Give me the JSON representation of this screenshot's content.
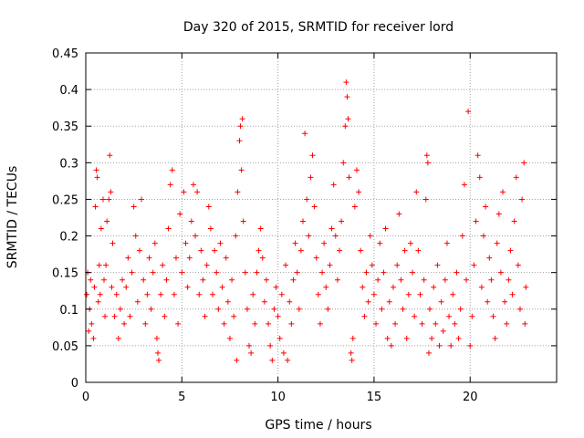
{
  "chart_data": {
    "type": "scatter",
    "title": "Day 320 of 2015, SRMTID for receiver lord",
    "xlabel": "GPS time / hours",
    "ylabel": "SRMTID / TECUs",
    "xlim": [
      0,
      24.5
    ],
    "ylim": [
      0,
      0.45
    ],
    "xticks": [
      0,
      5,
      10,
      15,
      20
    ],
    "xtick_labels": [
      "0",
      "5",
      "10",
      "15",
      "20"
    ],
    "yticks": [
      0,
      0.05,
      0.1,
      0.15,
      0.2,
      0.25,
      0.3,
      0.35,
      0.4,
      0.45
    ],
    "ytick_labels": [
      "0",
      "0.05",
      "0.1",
      "0.15",
      "0.2",
      "0.25",
      "0.3",
      "0.35",
      "0.4",
      "0.45"
    ],
    "grid": true,
    "marker": "+",
    "color": "#ff0000",
    "series": [
      {
        "name": "SRMTID",
        "points": [
          [
            0.05,
            0.12
          ],
          [
            0.1,
            0.15
          ],
          [
            0.15,
            0.07
          ],
          [
            0.2,
            0.1
          ],
          [
            0.25,
            0.14
          ],
          [
            0.3,
            0.08
          ],
          [
            0.4,
            0.06
          ],
          [
            0.45,
            0.13
          ],
          [
            0.5,
            0.24
          ],
          [
            0.55,
            0.29
          ],
          [
            0.6,
            0.28
          ],
          [
            0.65,
            0.11
          ],
          [
            0.7,
            0.16
          ],
          [
            0.75,
            0.12
          ],
          [
            0.8,
            0.21
          ],
          [
            0.9,
            0.25
          ],
          [
            0.95,
            0.14
          ],
          [
            1.0,
            0.09
          ],
          [
            1.05,
            0.16
          ],
          [
            1.1,
            0.22
          ],
          [
            1.2,
            0.25
          ],
          [
            1.25,
            0.31
          ],
          [
            1.3,
            0.26
          ],
          [
            1.35,
            0.13
          ],
          [
            1.4,
            0.19
          ],
          [
            1.5,
            0.09
          ],
          [
            1.6,
            0.12
          ],
          [
            1.7,
            0.06
          ],
          [
            1.8,
            0.1
          ],
          [
            1.9,
            0.14
          ],
          [
            2.0,
            0.08
          ],
          [
            2.1,
            0.13
          ],
          [
            2.2,
            0.17
          ],
          [
            2.3,
            0.09
          ],
          [
            2.4,
            0.15
          ],
          [
            2.5,
            0.24
          ],
          [
            2.6,
            0.2
          ],
          [
            2.7,
            0.11
          ],
          [
            2.8,
            0.18
          ],
          [
            2.9,
            0.25
          ],
          [
            3.0,
            0.14
          ],
          [
            3.1,
            0.08
          ],
          [
            3.2,
            0.12
          ],
          [
            3.3,
            0.17
          ],
          [
            3.4,
            0.1
          ],
          [
            3.5,
            0.15
          ],
          [
            3.6,
            0.19
          ],
          [
            3.7,
            0.06
          ],
          [
            3.75,
            0.04
          ],
          [
            3.8,
            0.03
          ],
          [
            3.9,
            0.12
          ],
          [
            4.0,
            0.16
          ],
          [
            4.1,
            0.09
          ],
          [
            4.2,
            0.14
          ],
          [
            4.3,
            0.21
          ],
          [
            4.4,
            0.27
          ],
          [
            4.5,
            0.29
          ],
          [
            4.6,
            0.12
          ],
          [
            4.7,
            0.17
          ],
          [
            4.8,
            0.08
          ],
          [
            4.9,
            0.23
          ],
          [
            5.0,
            0.15
          ],
          [
            5.1,
            0.26
          ],
          [
            5.2,
            0.19
          ],
          [
            5.3,
            0.13
          ],
          [
            5.4,
            0.17
          ],
          [
            5.5,
            0.22
          ],
          [
            5.6,
            0.27
          ],
          [
            5.7,
            0.2
          ],
          [
            5.8,
            0.26
          ],
          [
            5.9,
            0.12
          ],
          [
            6.0,
            0.18
          ],
          [
            6.1,
            0.14
          ],
          [
            6.2,
            0.09
          ],
          [
            6.3,
            0.16
          ],
          [
            6.4,
            0.24
          ],
          [
            6.5,
            0.21
          ],
          [
            6.6,
            0.12
          ],
          [
            6.7,
            0.18
          ],
          [
            6.8,
            0.15
          ],
          [
            6.9,
            0.1
          ],
          [
            7.0,
            0.19
          ],
          [
            7.1,
            0.13
          ],
          [
            7.2,
            0.08
          ],
          [
            7.3,
            0.17
          ],
          [
            7.4,
            0.11
          ],
          [
            7.5,
            0.06
          ],
          [
            7.6,
            0.14
          ],
          [
            7.7,
            0.09
          ],
          [
            7.8,
            0.2
          ],
          [
            7.85,
            0.03
          ],
          [
            7.9,
            0.26
          ],
          [
            8.0,
            0.33
          ],
          [
            8.05,
            0.35
          ],
          [
            8.1,
            0.29
          ],
          [
            8.15,
            0.36
          ],
          [
            8.2,
            0.22
          ],
          [
            8.3,
            0.15
          ],
          [
            8.4,
            0.1
          ],
          [
            8.5,
            0.05
          ],
          [
            8.6,
            0.04
          ],
          [
            8.7,
            0.12
          ],
          [
            8.8,
            0.08
          ],
          [
            8.9,
            0.15
          ],
          [
            9.0,
            0.18
          ],
          [
            9.1,
            0.21
          ],
          [
            9.2,
            0.17
          ],
          [
            9.3,
            0.11
          ],
          [
            9.4,
            0.14
          ],
          [
            9.5,
            0.08
          ],
          [
            9.6,
            0.05
          ],
          [
            9.7,
            0.03
          ],
          [
            9.8,
            0.1
          ],
          [
            9.9,
            0.13
          ],
          [
            10.0,
            0.09
          ],
          [
            10.1,
            0.06
          ],
          [
            10.2,
            0.12
          ],
          [
            10.3,
            0.04
          ],
          [
            10.4,
            0.16
          ],
          [
            10.5,
            0.03
          ],
          [
            10.6,
            0.11
          ],
          [
            10.7,
            0.08
          ],
          [
            10.8,
            0.14
          ],
          [
            10.9,
            0.19
          ],
          [
            11.0,
            0.15
          ],
          [
            11.1,
            0.1
          ],
          [
            11.2,
            0.18
          ],
          [
            11.3,
            0.22
          ],
          [
            11.4,
            0.34
          ],
          [
            11.5,
            0.25
          ],
          [
            11.6,
            0.2
          ],
          [
            11.7,
            0.28
          ],
          [
            11.8,
            0.31
          ],
          [
            11.9,
            0.24
          ],
          [
            12.0,
            0.17
          ],
          [
            12.1,
            0.12
          ],
          [
            12.2,
            0.08
          ],
          [
            12.3,
            0.15
          ],
          [
            12.4,
            0.19
          ],
          [
            12.5,
            0.13
          ],
          [
            12.6,
            0.1
          ],
          [
            12.7,
            0.16
          ],
          [
            12.8,
            0.21
          ],
          [
            12.9,
            0.27
          ],
          [
            13.0,
            0.2
          ],
          [
            13.1,
            0.14
          ],
          [
            13.2,
            0.18
          ],
          [
            13.3,
            0.22
          ],
          [
            13.4,
            0.3
          ],
          [
            13.5,
            0.35
          ],
          [
            13.55,
            0.41
          ],
          [
            13.6,
            0.39
          ],
          [
            13.65,
            0.36
          ],
          [
            13.7,
            0.28
          ],
          [
            13.8,
            0.04
          ],
          [
            13.85,
            0.03
          ],
          [
            13.9,
            0.06
          ],
          [
            14.0,
            0.24
          ],
          [
            14.1,
            0.29
          ],
          [
            14.2,
            0.26
          ],
          [
            14.3,
            0.18
          ],
          [
            14.4,
            0.13
          ],
          [
            14.5,
            0.09
          ],
          [
            14.6,
            0.15
          ],
          [
            14.7,
            0.11
          ],
          [
            14.8,
            0.2
          ],
          [
            14.9,
            0.16
          ],
          [
            15.0,
            0.12
          ],
          [
            15.1,
            0.08
          ],
          [
            15.2,
            0.14
          ],
          [
            15.3,
            0.19
          ],
          [
            15.4,
            0.1
          ],
          [
            15.5,
            0.15
          ],
          [
            15.6,
            0.21
          ],
          [
            15.7,
            0.06
          ],
          [
            15.8,
            0.11
          ],
          [
            15.9,
            0.05
          ],
          [
            16.0,
            0.13
          ],
          [
            16.1,
            0.08
          ],
          [
            16.2,
            0.16
          ],
          [
            16.3,
            0.23
          ],
          [
            16.4,
            0.14
          ],
          [
            16.5,
            0.1
          ],
          [
            16.6,
            0.18
          ],
          [
            16.7,
            0.06
          ],
          [
            16.8,
            0.12
          ],
          [
            16.9,
            0.19
          ],
          [
            17.0,
            0.15
          ],
          [
            17.1,
            0.09
          ],
          [
            17.2,
            0.26
          ],
          [
            17.3,
            0.18
          ],
          [
            17.4,
            0.12
          ],
          [
            17.5,
            0.08
          ],
          [
            17.6,
            0.14
          ],
          [
            17.7,
            0.25
          ],
          [
            17.75,
            0.31
          ],
          [
            17.8,
            0.3
          ],
          [
            17.85,
            0.04
          ],
          [
            17.9,
            0.1
          ],
          [
            18.0,
            0.06
          ],
          [
            18.1,
            0.13
          ],
          [
            18.2,
            0.08
          ],
          [
            18.3,
            0.16
          ],
          [
            18.4,
            0.05
          ],
          [
            18.5,
            0.11
          ],
          [
            18.6,
            0.07
          ],
          [
            18.7,
            0.14
          ],
          [
            18.8,
            0.19
          ],
          [
            18.9,
            0.09
          ],
          [
            19.0,
            0.05
          ],
          [
            19.1,
            0.12
          ],
          [
            19.2,
            0.08
          ],
          [
            19.3,
            0.15
          ],
          [
            19.4,
            0.06
          ],
          [
            19.5,
            0.1
          ],
          [
            19.6,
            0.2
          ],
          [
            19.7,
            0.27
          ],
          [
            19.8,
            0.14
          ],
          [
            19.9,
            0.37
          ],
          [
            20.0,
            0.05
          ],
          [
            20.1,
            0.09
          ],
          [
            20.2,
            0.16
          ],
          [
            20.3,
            0.22
          ],
          [
            20.4,
            0.31
          ],
          [
            20.5,
            0.28
          ],
          [
            20.6,
            0.13
          ],
          [
            20.7,
            0.2
          ],
          [
            20.8,
            0.24
          ],
          [
            20.9,
            0.11
          ],
          [
            21.0,
            0.17
          ],
          [
            21.1,
            0.14
          ],
          [
            21.2,
            0.09
          ],
          [
            21.3,
            0.06
          ],
          [
            21.4,
            0.19
          ],
          [
            21.5,
            0.23
          ],
          [
            21.6,
            0.15
          ],
          [
            21.7,
            0.26
          ],
          [
            21.8,
            0.11
          ],
          [
            21.9,
            0.08
          ],
          [
            22.0,
            0.14
          ],
          [
            22.1,
            0.18
          ],
          [
            22.2,
            0.12
          ],
          [
            22.3,
            0.22
          ],
          [
            22.4,
            0.28
          ],
          [
            22.5,
            0.16
          ],
          [
            22.6,
            0.1
          ],
          [
            22.7,
            0.25
          ],
          [
            22.8,
            0.3
          ],
          [
            22.85,
            0.08
          ],
          [
            22.9,
            0.13
          ]
        ]
      }
    ]
  }
}
